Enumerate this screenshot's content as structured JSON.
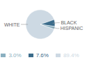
{
  "chart_data": {
    "type": "pie",
    "categories": [
      "WHITE",
      "BLACK",
      "HISPANIC"
    ],
    "values": [
      89.4,
      7.6,
      3.0
    ],
    "value_labels": [
      "89.4%",
      "7.6%",
      "3.0%"
    ],
    "colors": [
      "#cdd9e3",
      "#3a6b8a",
      "#8aafc0"
    ],
    "legend": "bottom"
  }
}
